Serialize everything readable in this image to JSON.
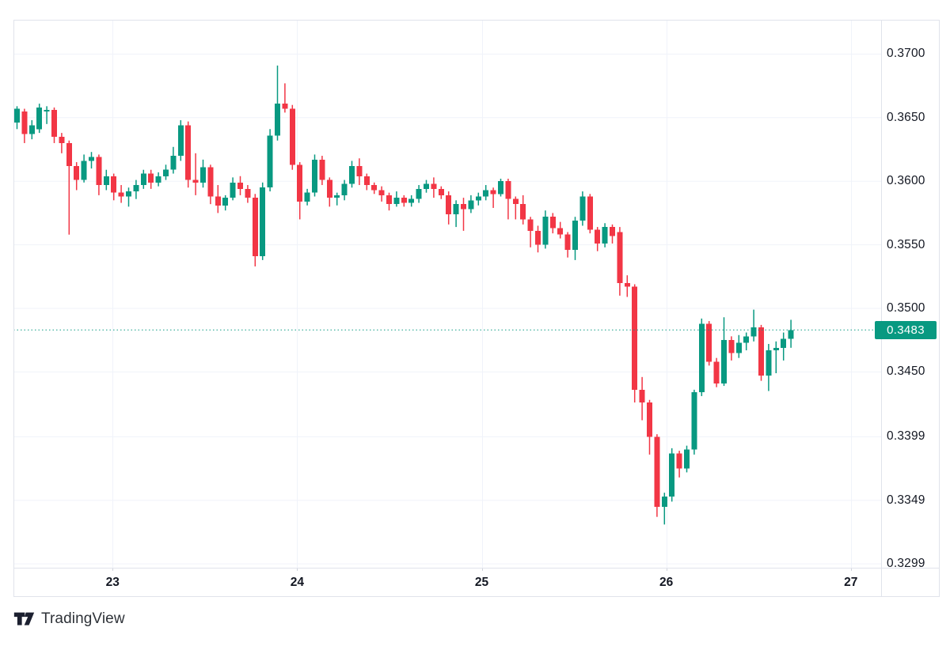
{
  "colors": {
    "up": "#089981",
    "down": "#f23645",
    "grid": "#f0f3fa",
    "border": "#e0e3eb",
    "tick": "#d1d4dc",
    "axis_text": "#131722",
    "dotted_line": "#089981",
    "badge_bg": "#089981",
    "badge_text": "#ffffff",
    "logo": "#1c2030",
    "background": "#ffffff"
  },
  "footer": {
    "logo_text": "TradingView"
  },
  "chart_data": {
    "type": "candlestick",
    "title": "",
    "xlabel": "",
    "ylabel": "",
    "grid": true,
    "last_price": 0.3483,
    "last_price_label": "0.3483",
    "y_range": {
      "top": 0.3727,
      "bottom": 0.3296
    },
    "y_ticks": [
      {
        "label": "0.3700",
        "value": 0.37
      },
      {
        "label": "0.3650",
        "value": 0.365
      },
      {
        "label": "0.3600",
        "value": 0.36
      },
      {
        "label": "0.3550",
        "value": 0.355
      },
      {
        "label": "0.3500",
        "value": 0.35
      },
      {
        "label": "0.3450",
        "value": 0.345
      },
      {
        "label": "0.3399",
        "value": 0.3399
      },
      {
        "label": "0.3349",
        "value": 0.3349
      },
      {
        "label": "0.3299",
        "value": 0.3299
      }
    ],
    "x_ticks": [
      {
        "label": "23",
        "pos": 12.9
      },
      {
        "label": "24",
        "pos": 37.7
      },
      {
        "label": "25",
        "pos": 62.5
      },
      {
        "label": "26",
        "pos": 87.3
      },
      {
        "label": "27",
        "pos": 112.1
      }
    ],
    "candles": [
      [
        0.3646,
        0.3659,
        0.3641,
        0.3657
      ],
      [
        0.3655,
        0.3657,
        0.363,
        0.3637
      ],
      [
        0.3637,
        0.3648,
        0.3633,
        0.3644
      ],
      [
        0.3641,
        0.3661,
        0.3638,
        0.3658
      ],
      [
        0.3655,
        0.3659,
        0.3645,
        0.3656
      ],
      [
        0.3656,
        0.3658,
        0.363,
        0.3635
      ],
      [
        0.3635,
        0.3638,
        0.3622,
        0.363
      ],
      [
        0.363,
        0.3632,
        0.3558,
        0.3612
      ],
      [
        0.3612,
        0.3615,
        0.3593,
        0.3601
      ],
      [
        0.3601,
        0.3621,
        0.3599,
        0.3616
      ],
      [
        0.3616,
        0.3623,
        0.361,
        0.3619
      ],
      [
        0.3619,
        0.3621,
        0.3589,
        0.3597
      ],
      [
        0.3597,
        0.3609,
        0.3593,
        0.3604
      ],
      [
        0.3604,
        0.3606,
        0.3585,
        0.3591
      ],
      [
        0.3591,
        0.3597,
        0.3583,
        0.3588
      ],
      [
        0.3588,
        0.3595,
        0.358,
        0.3592
      ],
      [
        0.3592,
        0.3601,
        0.3586,
        0.3597
      ],
      [
        0.3597,
        0.3609,
        0.3594,
        0.3606
      ],
      [
        0.3606,
        0.3609,
        0.3594,
        0.3599
      ],
      [
        0.3599,
        0.3607,
        0.3596,
        0.3604
      ],
      [
        0.3604,
        0.3613,
        0.3601,
        0.3609
      ],
      [
        0.3609,
        0.3627,
        0.3606,
        0.362
      ],
      [
        0.362,
        0.3648,
        0.3616,
        0.3644
      ],
      [
        0.3644,
        0.3647,
        0.3595,
        0.3601
      ],
      [
        0.3601,
        0.3622,
        0.3589,
        0.3599
      ],
      [
        0.3599,
        0.3617,
        0.3595,
        0.3611
      ],
      [
        0.3611,
        0.3613,
        0.3582,
        0.3588
      ],
      [
        0.3588,
        0.3597,
        0.3575,
        0.3581
      ],
      [
        0.3581,
        0.3589,
        0.3577,
        0.3587
      ],
      [
        0.3587,
        0.3603,
        0.3585,
        0.3599
      ],
      [
        0.3599,
        0.3604,
        0.3589,
        0.3594
      ],
      [
        0.3594,
        0.3597,
        0.3583,
        0.3587
      ],
      [
        0.3587,
        0.359,
        0.3533,
        0.3541
      ],
      [
        0.3541,
        0.3599,
        0.3538,
        0.3595
      ],
      [
        0.3595,
        0.3641,
        0.3592,
        0.3636
      ],
      [
        0.3636,
        0.3691,
        0.3632,
        0.3661
      ],
      [
        0.3661,
        0.3677,
        0.3654,
        0.3657
      ],
      [
        0.3657,
        0.366,
        0.3609,
        0.3613
      ],
      [
        0.3613,
        0.3615,
        0.357,
        0.3584
      ],
      [
        0.3584,
        0.3594,
        0.3581,
        0.3591
      ],
      [
        0.3591,
        0.3621,
        0.3588,
        0.3617
      ],
      [
        0.3617,
        0.362,
        0.3597,
        0.3601
      ],
      [
        0.3601,
        0.3603,
        0.358,
        0.3587
      ],
      [
        0.3587,
        0.3591,
        0.3581,
        0.3589
      ],
      [
        0.3589,
        0.3601,
        0.3585,
        0.3598
      ],
      [
        0.3598,
        0.3616,
        0.3595,
        0.3612
      ],
      [
        0.3612,
        0.3618,
        0.3597,
        0.3604
      ],
      [
        0.3604,
        0.3606,
        0.3593,
        0.3597
      ],
      [
        0.3597,
        0.3599,
        0.359,
        0.3593
      ],
      [
        0.3593,
        0.3596,
        0.3584,
        0.3589
      ],
      [
        0.3589,
        0.3591,
        0.3577,
        0.3582
      ],
      [
        0.3582,
        0.3592,
        0.358,
        0.3587
      ],
      [
        0.3587,
        0.3589,
        0.358,
        0.3583
      ],
      [
        0.3583,
        0.3589,
        0.358,
        0.3586
      ],
      [
        0.3586,
        0.3597,
        0.3583,
        0.3594
      ],
      [
        0.3594,
        0.3601,
        0.3591,
        0.3598
      ],
      [
        0.3598,
        0.3603,
        0.3587,
        0.3594
      ],
      [
        0.3594,
        0.3596,
        0.3586,
        0.3589
      ],
      [
        0.3589,
        0.3592,
        0.3566,
        0.3574
      ],
      [
        0.3574,
        0.3585,
        0.3564,
        0.3582
      ],
      [
        0.3582,
        0.3587,
        0.3561,
        0.3578
      ],
      [
        0.3578,
        0.3589,
        0.3575,
        0.3585
      ],
      [
        0.3585,
        0.3591,
        0.3581,
        0.3588
      ],
      [
        0.3588,
        0.3597,
        0.3585,
        0.3593
      ],
      [
        0.3593,
        0.3595,
        0.3579,
        0.359
      ],
      [
        0.359,
        0.3602,
        0.3588,
        0.36
      ],
      [
        0.36,
        0.3602,
        0.357,
        0.3586
      ],
      [
        0.3586,
        0.3588,
        0.357,
        0.3582
      ],
      [
        0.3582,
        0.3589,
        0.3566,
        0.357
      ],
      [
        0.357,
        0.3572,
        0.3548,
        0.3561
      ],
      [
        0.3561,
        0.3565,
        0.3544,
        0.355
      ],
      [
        0.355,
        0.3577,
        0.3547,
        0.3572
      ],
      [
        0.3572,
        0.3575,
        0.3559,
        0.3563
      ],
      [
        0.3563,
        0.3568,
        0.3555,
        0.3558
      ],
      [
        0.3558,
        0.356,
        0.354,
        0.3546
      ],
      [
        0.3546,
        0.3572,
        0.3538,
        0.3569
      ],
      [
        0.3569,
        0.3592,
        0.3565,
        0.3588
      ],
      [
        0.3588,
        0.359,
        0.3559,
        0.3562
      ],
      [
        0.3562,
        0.3564,
        0.3545,
        0.3551
      ],
      [
        0.3551,
        0.3567,
        0.3548,
        0.3564
      ],
      [
        0.3564,
        0.3566,
        0.3551,
        0.3557
      ],
      [
        0.356,
        0.3564,
        0.351,
        0.352
      ],
      [
        0.352,
        0.3526,
        0.3509,
        0.3517
      ],
      [
        0.3517,
        0.3519,
        0.3426,
        0.3436
      ],
      [
        0.3436,
        0.3446,
        0.3412,
        0.3426
      ],
      [
        0.3426,
        0.3428,
        0.3385,
        0.3399
      ],
      [
        0.3399,
        0.3401,
        0.3336,
        0.3344
      ],
      [
        0.3344,
        0.3355,
        0.333,
        0.3352
      ],
      [
        0.3352,
        0.339,
        0.3348,
        0.3386
      ],
      [
        0.3386,
        0.3388,
        0.3367,
        0.3374
      ],
      [
        0.3374,
        0.3392,
        0.3371,
        0.3389
      ],
      [
        0.3389,
        0.3436,
        0.3385,
        0.3434
      ],
      [
        0.3434,
        0.3492,
        0.3431,
        0.3488
      ],
      [
        0.3488,
        0.349,
        0.3455,
        0.3458
      ],
      [
        0.3458,
        0.3461,
        0.3438,
        0.3441
      ],
      [
        0.3441,
        0.3493,
        0.3439,
        0.3475
      ],
      [
        0.3475,
        0.3478,
        0.3459,
        0.3465
      ],
      [
        0.3465,
        0.3479,
        0.3461,
        0.3473
      ],
      [
        0.3473,
        0.3481,
        0.3467,
        0.3478
      ],
      [
        0.3478,
        0.3499,
        0.3474,
        0.3485
      ],
      [
        0.3485,
        0.3487,
        0.3443,
        0.3447
      ],
      [
        0.3447,
        0.3472,
        0.3435,
        0.3467
      ],
      [
        0.3467,
        0.3474,
        0.3449,
        0.3469
      ],
      [
        0.3469,
        0.3481,
        0.3459,
        0.3476
      ],
      [
        0.3476,
        0.3491,
        0.3469,
        0.3483
      ]
    ]
  }
}
